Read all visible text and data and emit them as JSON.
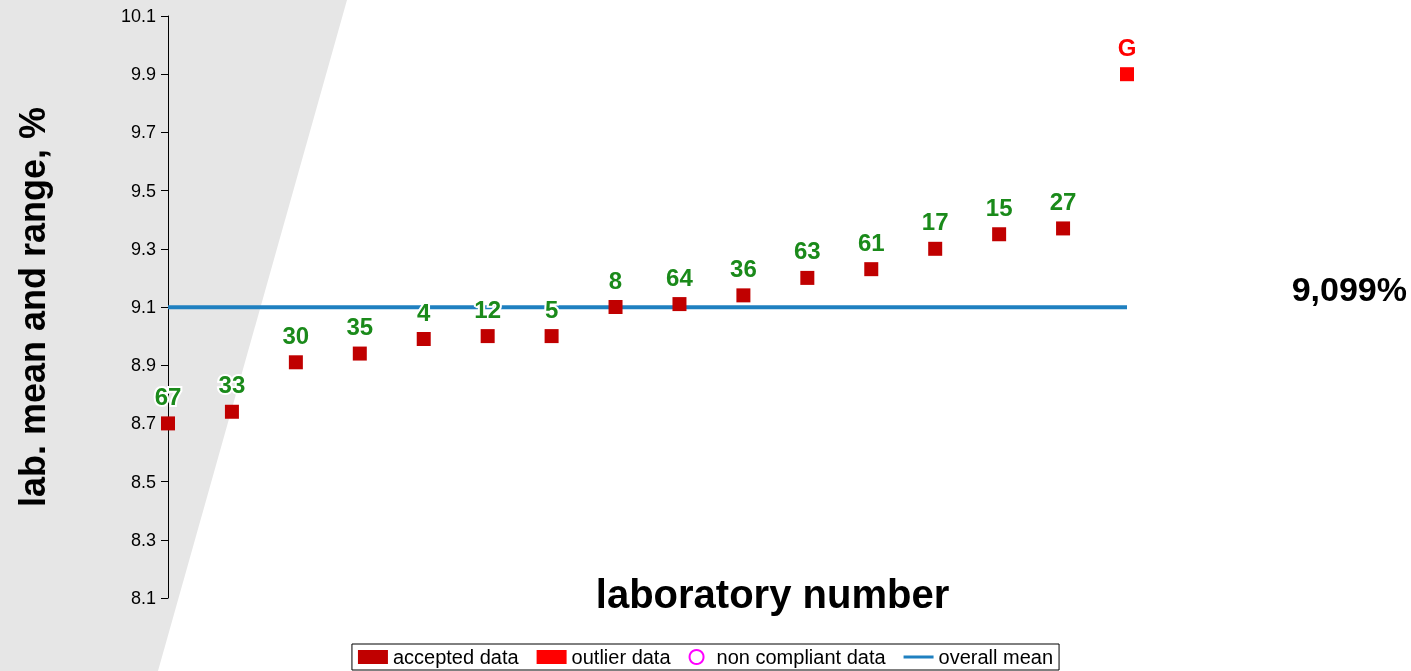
{
  "chart_data": {
    "type": "scatter",
    "xlabel": "laboratory number",
    "ylabel": "lab. mean and range, %",
    "categories": [
      "67",
      "33",
      "30",
      "35",
      "4",
      "12",
      "5",
      "8",
      "64",
      "36",
      "63",
      "61",
      "17",
      "15",
      "27",
      "G"
    ],
    "series": [
      {
        "name": "accepted data",
        "color": "#c00000",
        "marker": "square",
        "values": [
          8.7,
          8.74,
          8.91,
          8.94,
          8.99,
          9.0,
          9.0,
          9.1,
          9.11,
          9.14,
          9.2,
          9.23,
          9.3,
          9.35,
          9.37,
          null
        ]
      },
      {
        "name": "outlier data",
        "color": "#ff0000",
        "marker": "square",
        "values": [
          null,
          null,
          null,
          null,
          null,
          null,
          null,
          null,
          null,
          null,
          null,
          null,
          null,
          null,
          null,
          9.9
        ]
      },
      {
        "name": "non compliant data",
        "color": "#ff00ff",
        "marker": "circle",
        "values": [
          null,
          null,
          null,
          null,
          null,
          null,
          null,
          null,
          null,
          null,
          null,
          null,
          null,
          null,
          null,
          null
        ]
      },
      {
        "name": "overall mean",
        "type": "line",
        "color": "#1f80c0",
        "marker": "none",
        "line_style": "solid",
        "values": [
          9.099,
          9.099,
          9.099,
          9.099,
          9.099,
          9.099,
          9.099,
          9.099,
          9.099,
          9.099,
          9.099,
          9.099,
          9.099,
          9.099,
          9.099,
          9.099
        ]
      }
    ],
    "annotations": [
      "9,099%"
    ],
    "ylim": [
      8.1,
      10.1
    ],
    "yticks": [
      8.1,
      8.3,
      8.5,
      8.7,
      8.9,
      9.1,
      9.3,
      9.5,
      9.7,
      9.9,
      10.1
    ],
    "tick_labels": "y",
    "grid": false,
    "legend": "bottom"
  }
}
